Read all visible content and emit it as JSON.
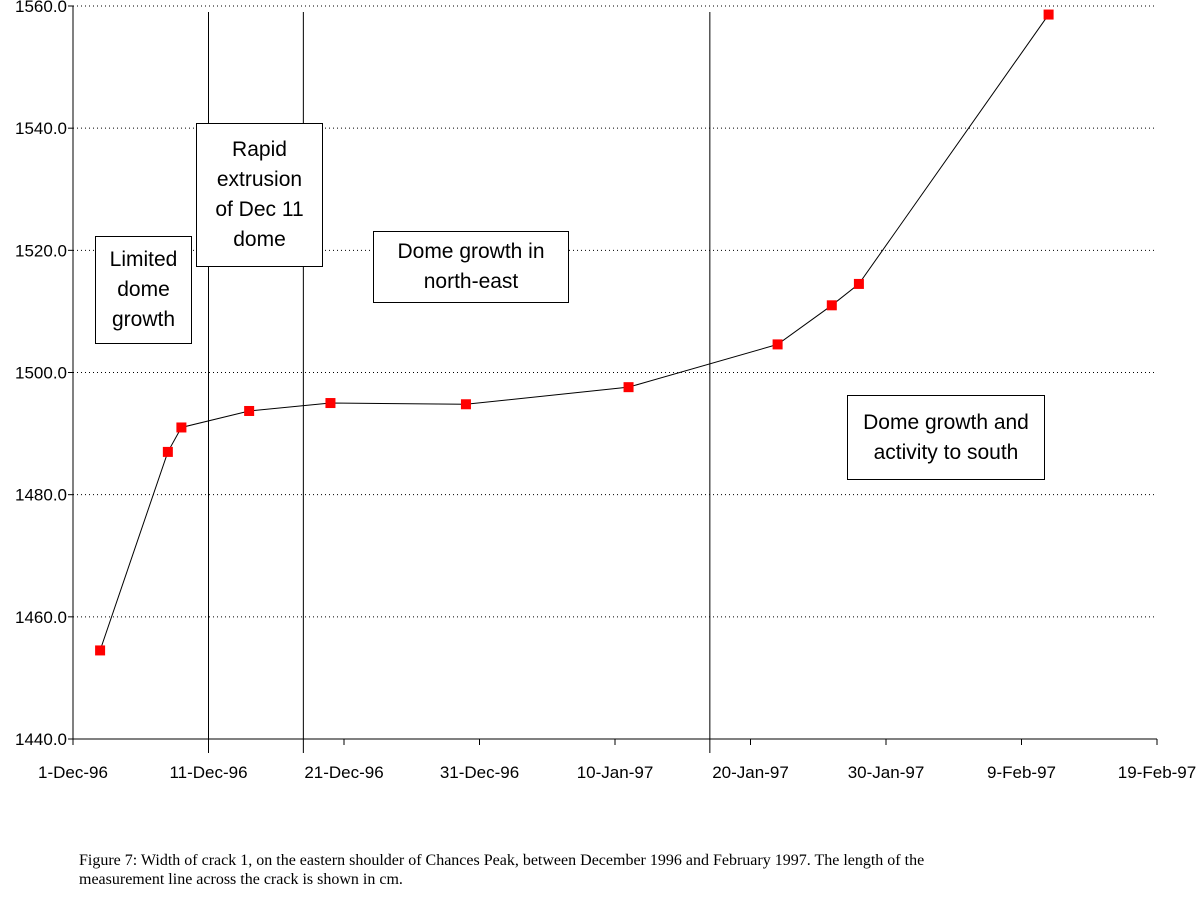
{
  "chart_data": {
    "type": "line",
    "title": "",
    "xlabel": "",
    "ylabel": "",
    "ylim": [
      1440.0,
      1560.0
    ],
    "y_ticks": [
      "1440.0",
      "1460.0",
      "1480.0",
      "1500.0",
      "1520.0",
      "1540.0",
      "1560.0"
    ],
    "x_ticks": [
      "1-Dec-96",
      "11-Dec-96",
      "21-Dec-96",
      "31-Dec-96",
      "10-Jan-97",
      "20-Jan-97",
      "30-Jan-97",
      "9-Feb-97",
      "19-Feb-97"
    ],
    "xlim": [
      "1-Dec-96",
      "19-Feb-97"
    ],
    "grid": "horizontal dotted",
    "series": [
      {
        "color": "#ff0000",
        "marker": "square",
        "points": [
          {
            "x": "3-Dec-96",
            "y": 1454.5
          },
          {
            "x": "8-Dec-96",
            "y": 1487.0
          },
          {
            "x": "9-Dec-96",
            "y": 1491.0
          },
          {
            "x": "14-Dec-96",
            "y": 1493.7
          },
          {
            "x": "20-Dec-96",
            "y": 1495.0
          },
          {
            "x": "30-Dec-96",
            "y": 1494.8
          },
          {
            "x": "11-Jan-97",
            "y": 1497.6
          },
          {
            "x": "22-Jan-97",
            "y": 1504.6
          },
          {
            "x": "26-Jan-97",
            "y": 1511.0
          },
          {
            "x": "28-Jan-97",
            "y": 1514.5
          },
          {
            "x": "11-Feb-97",
            "y": 1558.6
          }
        ]
      }
    ],
    "phase_lines": [
      "11-Dec-96",
      "18-Dec-96",
      "17-Jan-97"
    ],
    "annotations": [
      "Limited\ndome\ngrowth",
      "Rapid\nextrusion\nof Dec 11\ndome",
      "Dome growth in\nnorth-east",
      "Dome growth and\nactivity to south"
    ]
  },
  "caption": "Figure 7:  Width of crack 1, on the eastern shoulder of Chances Peak, between December 1996 and February 1997.  The length of the\nmeasurement line across the crack is shown in cm."
}
